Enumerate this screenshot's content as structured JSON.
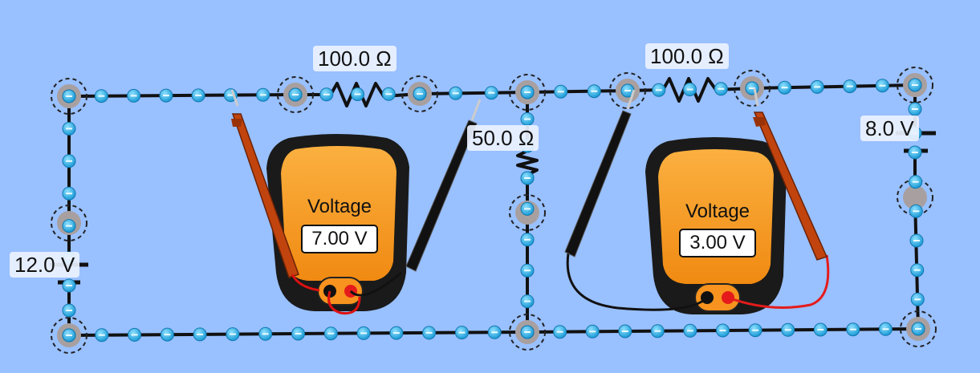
{
  "circuit": {
    "resistors": [
      {
        "id": "top-left",
        "label": "100.0 Ω"
      },
      {
        "id": "top-right",
        "label": "100.0 Ω"
      },
      {
        "id": "middle",
        "label": "50.0 Ω"
      }
    ],
    "batteries": [
      {
        "id": "left",
        "label": "12.0 V"
      },
      {
        "id": "right",
        "label": "8.0 V"
      }
    ]
  },
  "voltmeters": [
    {
      "id": "left",
      "title": "Voltage",
      "reading": "7.00 V"
    },
    {
      "id": "right",
      "title": "Voltage",
      "reading": "3.00 V"
    }
  ],
  "colors": {
    "background": "#99c0ff",
    "wire": "#111111",
    "electron": "#29abe2",
    "junction": "#a8a0a0",
    "meter_body": "#f7931e",
    "meter_case": "#1a1a1a",
    "red_probe": "#c1440e",
    "black_probe": "#111111"
  }
}
